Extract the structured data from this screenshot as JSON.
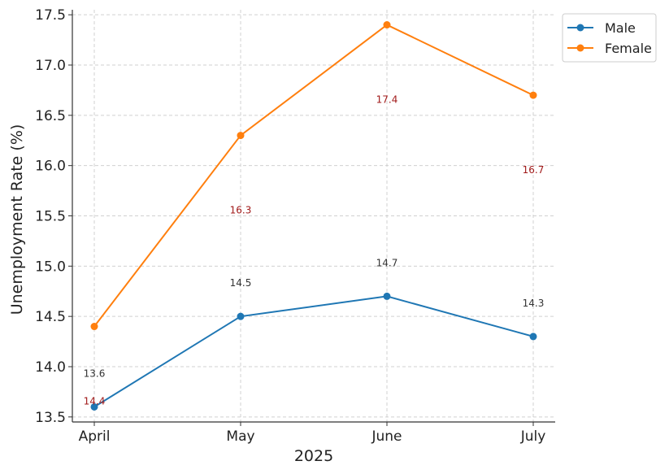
{
  "chart_data": {
    "type": "line",
    "categories": [
      "April",
      "May",
      "June",
      "July"
    ],
    "series": [
      {
        "name": "Male",
        "values": [
          13.6,
          14.5,
          14.7,
          14.3
        ],
        "color": "#1f77b4",
        "label_color": "#333333"
      },
      {
        "name": "Female",
        "values": [
          14.4,
          16.3,
          17.4,
          16.7
        ],
        "color": "#ff7f0e",
        "label_color": "#a11a1a"
      }
    ],
    "data_labels": {
      "Male": [
        "13.6",
        "14.5",
        "14.7",
        "14.3"
      ],
      "Female": [
        "14.4",
        "16.3",
        "17.4",
        "16.7"
      ]
    },
    "title": "",
    "xlabel": "2025",
    "ylabel": "Unemployment Rate (%)",
    "ylim": [
      13.45,
      17.55
    ],
    "yticks": [
      13.5,
      14.0,
      14.5,
      15.0,
      15.5,
      16.0,
      16.5,
      17.0,
      17.5
    ],
    "ytick_labels": [
      "13.5",
      "14.0",
      "14.5",
      "15.0",
      "15.5",
      "16.0",
      "16.5",
      "17.0",
      "17.5"
    ],
    "grid": true,
    "legend_position": "top-right"
  }
}
